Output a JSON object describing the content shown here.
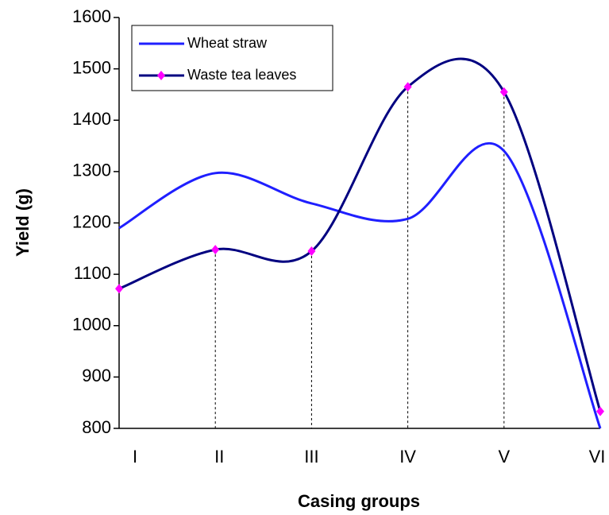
{
  "chart_data": {
    "type": "line",
    "x_label": "Casing groups",
    "y_label": "Yield  (g)",
    "categories": [
      "I",
      "II",
      "III",
      "IV",
      "V",
      "VI"
    ],
    "series": [
      {
        "name": "Wheat straw",
        "color": "#1f1fff",
        "values": [
          1190,
          1297,
          1238,
          1208,
          1340,
          800
        ]
      },
      {
        "name": "Waste tea leaves",
        "color": "#000080",
        "marker_color": "#ff00ff",
        "values": [
          1072,
          1148,
          1145,
          1465,
          1455,
          833
        ]
      }
    ],
    "ylim": [
      800,
      1600
    ],
    "yticks": [
      800,
      900,
      1000,
      1100,
      1200,
      1300,
      1400,
      1500,
      1600
    ],
    "grid": false,
    "legend": "upper left"
  }
}
